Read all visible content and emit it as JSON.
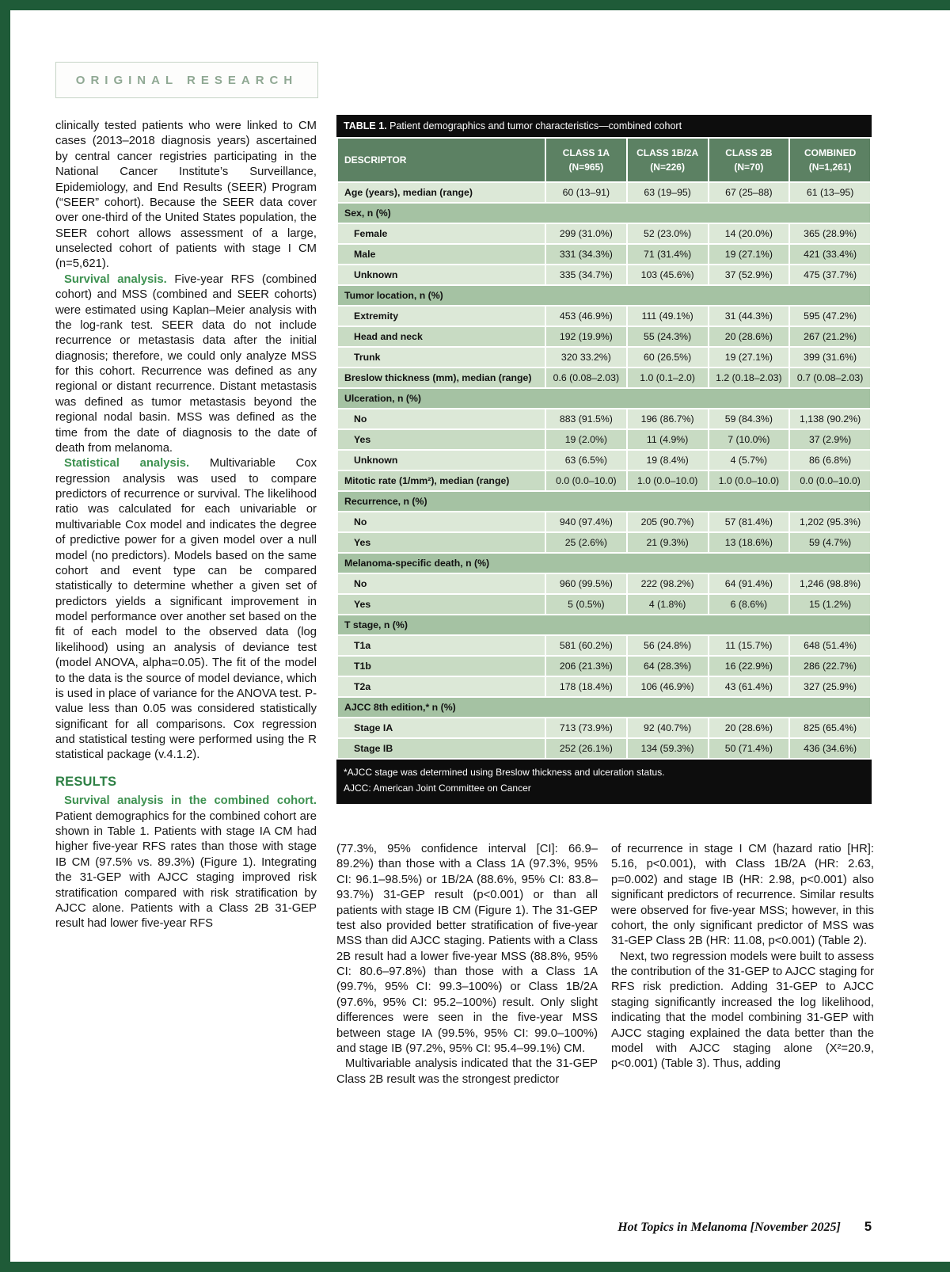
{
  "page": {
    "header_label": "ORIGINAL RESEARCH",
    "footer": {
      "journal": "Hot Topics in Melanoma [November 2025]",
      "page_number": "5"
    },
    "frame_color": "#1f5b38",
    "accent_green": "#2e8045"
  },
  "left_column": {
    "p1": "clinically tested patients who were linked to CM cases (2013–2018 diagnosis years) ascertained by central cancer registries participating in the National Cancer Institute’s Surveillance, Epidemiology, and End Results (SEER) Program (“SEER” cohort). Because the SEER data cover over one-third of the United States population, the SEER cohort allows assessment of a large, unselected cohort of patients with stage I CM (n=5,621).",
    "p2_lead": "Survival analysis.",
    "p2_text": "Five-year RFS (combined cohort) and MSS (combined and SEER cohorts) were estimated using Kaplan–Meier analysis with the log-rank test. SEER data do not include recurrence or metastasis data after the initial diagnosis; therefore, we could only analyze MSS for this cohort. Recurrence was defined as any regional or distant recurrence. Distant metastasis was defined as tumor metastasis beyond the regional nodal basin. MSS was defined as the time from the date of diagnosis to the date of death from melanoma.",
    "p3_lead": "Statistical analysis.",
    "p3_text": "Multivariable Cox regression analysis was used to compare predictors of recurrence or survival. The likelihood ratio was calculated for each univariable or multivariable Cox model and indicates the degree of predictive power for a given model over a null model (no predictors). Models based on the same cohort and event type can be compared statistically to determine whether a given set of predictors yields a significant improvement in model performance over another set based on the fit of each model to the observed data (log likelihood) using an analysis of deviance test (model ANOVA, alpha=0.05). The fit of the model to the data is the source of model deviance, which is used in place of variance for the ANOVA test. P-value less than 0.05 was considered statistically significant for all comparisons. Cox regression and statistical testing were performed using the R statistical package (v.4.1.2).",
    "results_heading": "RESULTS",
    "p4_lead": "Survival analysis in the combined cohort.",
    "p4_text": "Patient demographics for the combined cohort are shown in Table 1. Patients with stage IA CM had higher five-year RFS rates than those with stage IB CM (97.5% vs. 89.3%) (Figure 1). Integrating the 31-GEP with AJCC staging improved risk stratification compared with risk stratification by AJCC alone. Patients with a Class 2B 31-GEP result had lower five-year RFS"
  },
  "table": {
    "title_bold": "TABLE 1.",
    "title_rest": " Patient demographics and tumor characteristics—combined cohort",
    "columns": [
      "DESCRIPTOR",
      "CLASS 1A\n(N=965)",
      "CLASS 1B/2A\n(N=226)",
      "CLASS 2B\n(N=70)",
      "COMBINED\n(N=1,261)"
    ],
    "rows": [
      {
        "type": "data",
        "indent": false,
        "label": "Age (years), median (range)",
        "values": [
          "60 (13–91)",
          "63 (19–95)",
          "67 (25–88)",
          "61 (13–95)"
        ]
      },
      {
        "type": "category",
        "label": "Sex, n (%)"
      },
      {
        "type": "data",
        "indent": true,
        "label": "Female",
        "values": [
          "299 (31.0%)",
          "52 (23.0%)",
          "14 (20.0%)",
          "365 (28.9%)"
        ]
      },
      {
        "type": "data",
        "indent": true,
        "label": "Male",
        "values": [
          "331 (34.3%)",
          "71 (31.4%)",
          "19 (27.1%)",
          "421 (33.4%)"
        ]
      },
      {
        "type": "data",
        "indent": true,
        "label": "Unknown",
        "values": [
          "335 (34.7%)",
          "103 (45.6%)",
          "37 (52.9%)",
          "475 (37.7%)"
        ]
      },
      {
        "type": "category",
        "label": "Tumor location, n (%)"
      },
      {
        "type": "data",
        "indent": true,
        "label": "Extremity",
        "values": [
          "453 (46.9%)",
          "111 (49.1%)",
          "31 (44.3%)",
          "595 (47.2%)"
        ]
      },
      {
        "type": "data",
        "indent": true,
        "label": "Head and neck",
        "values": [
          "192 (19.9%)",
          "55 (24.3%)",
          "20 (28.6%)",
          "267 (21.2%)"
        ]
      },
      {
        "type": "data",
        "indent": true,
        "label": "Trunk",
        "values": [
          "320 33.2%)",
          "60 (26.5%)",
          "19 (27.1%)",
          "399 (31.6%)"
        ]
      },
      {
        "type": "data",
        "indent": false,
        "label": "Breslow thickness (mm), median (range)",
        "values": [
          "0.6 (0.08–2.03)",
          "1.0 (0.1–2.0)",
          "1.2 (0.18–2.03)",
          "0.7 (0.08–2.03)"
        ]
      },
      {
        "type": "category",
        "label": "Ulceration, n (%)"
      },
      {
        "type": "data",
        "indent": true,
        "label": "No",
        "values": [
          "883 (91.5%)",
          "196 (86.7%)",
          "59 (84.3%)",
          "1,138 (90.2%)"
        ]
      },
      {
        "type": "data",
        "indent": true,
        "label": "Yes",
        "values": [
          "19 (2.0%)",
          "11 (4.9%)",
          "7 (10.0%)",
          "37 (2.9%)"
        ]
      },
      {
        "type": "data",
        "indent": true,
        "label": "Unknown",
        "values": [
          "63 (6.5%)",
          "19 (8.4%)",
          "4 (5.7%)",
          "86 (6.8%)"
        ]
      },
      {
        "type": "data",
        "indent": false,
        "label": "Mitotic rate (1/mm²), median (range)",
        "values": [
          "0.0 (0.0–10.0)",
          "1.0 (0.0–10.0)",
          "1.0 (0.0–10.0)",
          "0.0 (0.0–10.0)"
        ]
      },
      {
        "type": "category",
        "label": "Recurrence, n (%)"
      },
      {
        "type": "data",
        "indent": true,
        "label": "No",
        "values": [
          "940 (97.4%)",
          "205 (90.7%)",
          "57 (81.4%)",
          "1,202 (95.3%)"
        ]
      },
      {
        "type": "data",
        "indent": true,
        "label": "Yes",
        "values": [
          "25 (2.6%)",
          "21 (9.3%)",
          "13 (18.6%)",
          "59 (4.7%)"
        ]
      },
      {
        "type": "category",
        "label": "Melanoma-specific death, n (%)"
      },
      {
        "type": "data",
        "indent": true,
        "label": "No",
        "values": [
          "960 (99.5%)",
          "222 (98.2%)",
          "64 (91.4%)",
          "1,246 (98.8%)"
        ]
      },
      {
        "type": "data",
        "indent": true,
        "label": "Yes",
        "values": [
          "5 (0.5%)",
          "4 (1.8%)",
          "6 (8.6%)",
          "15 (1.2%)"
        ]
      },
      {
        "type": "category",
        "label": "T stage, n (%)"
      },
      {
        "type": "data",
        "indent": true,
        "label": "T1a",
        "values": [
          "581 (60.2%)",
          "56 (24.8%)",
          "11 (15.7%)",
          "648 (51.4%)"
        ]
      },
      {
        "type": "data",
        "indent": true,
        "label": "T1b",
        "values": [
          "206 (21.3%)",
          "64 (28.3%)",
          "16 (22.9%)",
          "286 (22.7%)"
        ]
      },
      {
        "type": "data",
        "indent": true,
        "label": "T2a",
        "values": [
          "178 (18.4%)",
          "106 (46.9%)",
          "43 (61.4%)",
          "327 (25.9%)"
        ]
      },
      {
        "type": "category",
        "label": "AJCC 8th edition,* n (%)"
      },
      {
        "type": "data",
        "indent": true,
        "label": "Stage IA",
        "values": [
          "713 (73.9%)",
          "92 (40.7%)",
          "20 (28.6%)",
          "825 (65.4%)"
        ]
      },
      {
        "type": "data",
        "indent": true,
        "label": "Stage IB",
        "values": [
          "252 (26.1%)",
          "134 (59.3%)",
          "50 (71.4%)",
          "436 (34.6%)"
        ]
      }
    ],
    "footnotes": [
      "*AJCC stage was determined using Breslow thickness and ulceration status.",
      "AJCC: American Joint Committee on Cancer"
    ]
  },
  "mid_column": {
    "p1": "(77.3%, 95% confidence interval [CI]: 66.9–89.2%) than those with a Class 1A (97.3%, 95% CI: 96.1–98.5%) or 1B/2A (88.6%, 95% CI: 83.8–93.7%) 31-GEP result (p<0.001) or than all patients with stage IB CM (Figure 1). The 31-GEP test also provided better stratification of five-year MSS than did AJCC staging. Patients with a Class 2B result had a lower five-year MSS (88.8%, 95% CI: 80.6–97.8%) than those with a Class 1A (99.7%, 95% CI: 99.3–100%) or Class 1B/2A (97.6%, 95% CI: 95.2–100%) result. Only slight differences were seen in the five-year MSS between stage IA (99.5%, 95% CI: 99.0–100%) and stage IB (97.2%, 95% CI: 95.4–99.1%) CM.",
    "p2": "Multivariable analysis indicated that the 31-GEP Class 2B result was the strongest predictor"
  },
  "right_column": {
    "p1": "of recurrence in stage I CM (hazard ratio [HR]: 5.16, p<0.001), with Class 1B/2A (HR: 2.63, p=0.002) and stage IB (HR: 2.98, p<0.001) also significant predictors of recurrence. Similar results were observed for five-year MSS; however, in this cohort, the only significant predictor of MSS was 31-GEP Class 2B (HR: 11.08, p<0.001) (Table 2).",
    "p2": "Next, two regression models were built to assess the contribution of the 31-GEP to AJCC staging for RFS risk prediction. Adding 31-GEP to AJCC staging significantly increased the log likelihood, indicating that the model combining 31-GEP with AJCC staging explained the data better than the model with AJCC staging alone (X²=20.9, p<0.001) (Table 3). Thus, adding"
  }
}
